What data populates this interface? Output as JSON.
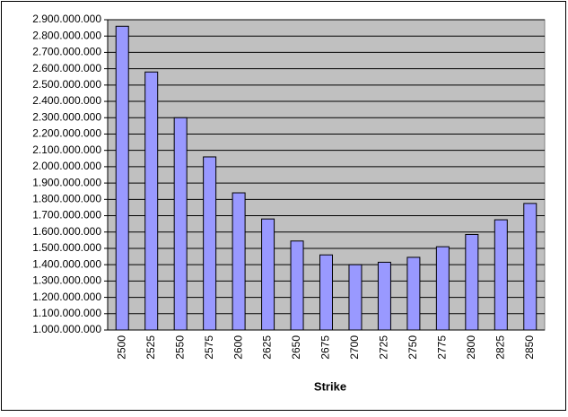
{
  "chart_data": {
    "type": "bar",
    "x_label": "Strike",
    "categories": [
      "2500",
      "2525",
      "2550",
      "2575",
      "2600",
      "2625",
      "2650",
      "2675",
      "2700",
      "2725",
      "2750",
      "2775",
      "2800",
      "2825",
      "2850"
    ],
    "values": [
      2860000000,
      2580000000,
      2300000000,
      2060000000,
      1840000000,
      1680000000,
      1545000000,
      1460000000,
      1400000000,
      1415000000,
      1445000000,
      1510000000,
      1585000000,
      1675000000,
      1775000000
    ],
    "color": "#9999ff",
    "plot_background": "#c0c0c0",
    "ylim": [
      1000000000,
      2900000000
    ],
    "yticks": [
      {
        "value": 1000000000,
        "label": "1.000.000.000"
      },
      {
        "value": 1100000000,
        "label": "1.100.000.000"
      },
      {
        "value": 1200000000,
        "label": "1.200.000.000"
      },
      {
        "value": 1300000000,
        "label": "1.300.000.000"
      },
      {
        "value": 1400000000,
        "label": "1.400.000.000"
      },
      {
        "value": 1500000000,
        "label": "1.500.000.000"
      },
      {
        "value": 1600000000,
        "label": "1.600.000.000"
      },
      {
        "value": 1700000000,
        "label": "1.700.000.000"
      },
      {
        "value": 1800000000,
        "label": "1.800.000.000"
      },
      {
        "value": 1900000000,
        "label": "1.900.000.000"
      },
      {
        "value": 2000000000,
        "label": "2.000.000.000"
      },
      {
        "value": 2100000000,
        "label": "2.100.000.000"
      },
      {
        "value": 2200000000,
        "label": "2.200.000.000"
      },
      {
        "value": 2300000000,
        "label": "2.300.000.000"
      },
      {
        "value": 2400000000,
        "label": "2.400.000.000"
      },
      {
        "value": 2500000000,
        "label": "2.500.000.000"
      },
      {
        "value": 2600000000,
        "label": "2.600.000.000"
      },
      {
        "value": 2700000000,
        "label": "2.700.000.000"
      },
      {
        "value": 2800000000,
        "label": "2.800.000.000"
      },
      {
        "value": 2900000000,
        "label": "2.900.000.000"
      }
    ],
    "grid": true
  }
}
